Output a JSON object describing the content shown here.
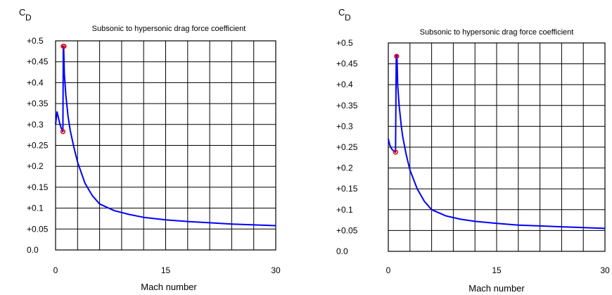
{
  "chart_data": [
    {
      "type": "line",
      "title": "Subsonic to hypersonic drag force coefficient",
      "ylabel_main": "C",
      "ylabel_sub": "D",
      "xlabel": "Mach number",
      "xlim": [
        0,
        30
      ],
      "ylim": [
        0,
        0.5
      ],
      "x_ticks": [
        "0",
        "15",
        "30"
      ],
      "y_ticks": [
        "0.0",
        "+0.05",
        "+0.1",
        "+0.15",
        "+0.2",
        "+0.25",
        "+0.3",
        "+0.35",
        "+0.4",
        "+0.45",
        "+0.5"
      ],
      "grid": true,
      "line_color": "#0000ff",
      "marker_color": "#ff0000",
      "series": [
        {
          "x": [
            0,
            0.2,
            0.4,
            0.6,
            0.8,
            1.0,
            1.05,
            1.1,
            1.2,
            1.4,
            1.7,
            2,
            2.5,
            3,
            4,
            5,
            6,
            8,
            10,
            12,
            15,
            18,
            21,
            24,
            27,
            30
          ],
          "y": [
            0.3,
            0.33,
            0.315,
            0.3,
            0.29,
            0.283,
            0.487,
            0.487,
            0.42,
            0.37,
            0.32,
            0.285,
            0.245,
            0.21,
            0.16,
            0.13,
            0.11,
            0.094,
            0.085,
            0.078,
            0.072,
            0.068,
            0.065,
            0.062,
            0.06,
            0.058
          ]
        }
      ],
      "markers": [
        {
          "x": 1.0,
          "y": 0.283
        },
        {
          "x": 1.05,
          "y": 0.487
        },
        {
          "x": 1.15,
          "y": 0.487
        }
      ]
    },
    {
      "type": "line",
      "title": "Subsonic to hypersonic drag force coefficient",
      "ylabel_main": "C",
      "ylabel_sub": "D",
      "xlabel": "Mach number",
      "xlim": [
        0,
        30
      ],
      "ylim": [
        0,
        0.5
      ],
      "x_ticks": [
        "0",
        "15",
        "30"
      ],
      "y_ticks": [
        "0.0",
        "+0.05",
        "+0.1",
        "+0.15",
        "+0.2",
        "+0.25",
        "+0.3",
        "+0.35",
        "+0.4",
        "+0.45",
        "+0.5"
      ],
      "grid": true,
      "line_color": "#0000ff",
      "marker_color": "#ff0000",
      "series": [
        {
          "x": [
            0,
            0.2,
            0.5,
            0.8,
            1.0,
            1.1,
            1.2,
            1.3,
            1.5,
            1.8,
            2,
            2.5,
            3,
            4,
            5,
            6,
            8,
            10,
            12,
            15,
            18,
            21,
            24,
            27,
            30
          ],
          "y": [
            0.27,
            0.255,
            0.245,
            0.24,
            0.238,
            0.47,
            0.47,
            0.4,
            0.35,
            0.3,
            0.275,
            0.23,
            0.195,
            0.15,
            0.12,
            0.1,
            0.085,
            0.077,
            0.072,
            0.067,
            0.063,
            0.061,
            0.059,
            0.057,
            0.055
          ]
        }
      ],
      "markers": [
        {
          "x": 1.0,
          "y": 0.238
        },
        {
          "x": 1.15,
          "y": 0.468
        }
      ]
    }
  ]
}
